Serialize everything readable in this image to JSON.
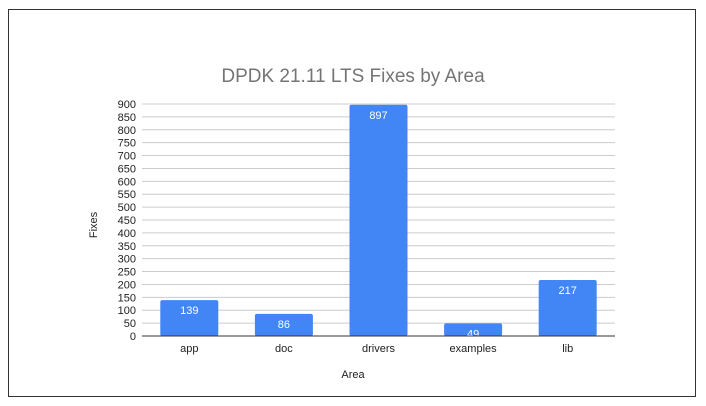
{
  "chart_data": {
    "type": "bar",
    "title": "DPDK 21.11 LTS Fixes by Area",
    "xlabel": "Area",
    "ylabel": "Fixes",
    "categories": [
      "app",
      "doc",
      "drivers",
      "examples",
      "lib"
    ],
    "values": [
      139,
      86,
      897,
      49,
      217
    ],
    "ylim": [
      0,
      900
    ],
    "yticks": [
      0,
      50,
      100,
      150,
      200,
      250,
      300,
      350,
      400,
      450,
      500,
      550,
      600,
      650,
      700,
      750,
      800,
      850,
      900
    ],
    "grid": true,
    "bar_color": "#4285f4"
  }
}
